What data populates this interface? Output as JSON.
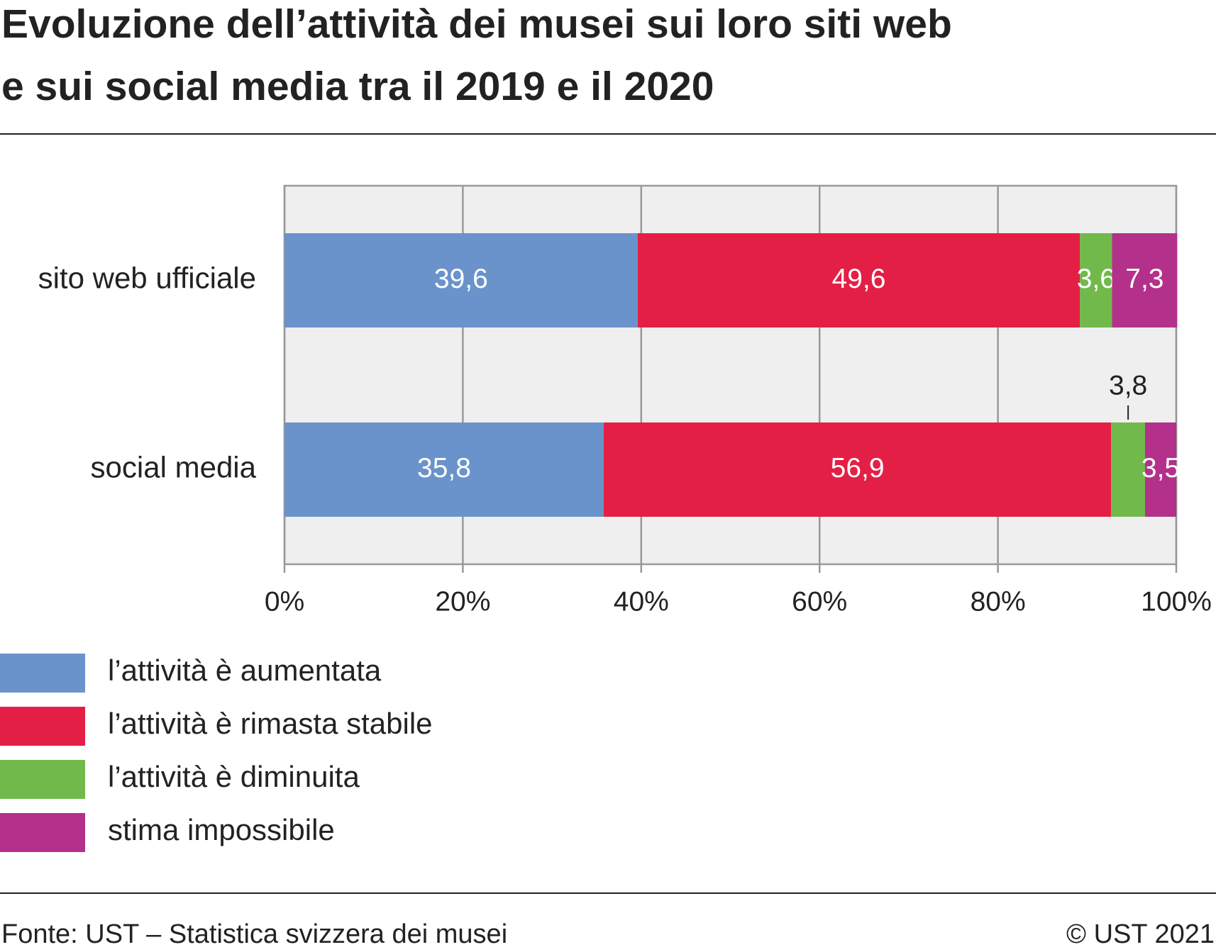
{
  "chart_data": {
    "type": "stacked_barh",
    "title": [
      "Evoluzione dell’attività dei musei sui loro siti web",
      "e sui social media tra il 2019 e il 2020"
    ],
    "categories": [
      "sito web ufficiale",
      "social media"
    ],
    "series": [
      {
        "name": "l’attività è aumentata",
        "color": "#6a93cb",
        "values": [
          39.6,
          35.8
        ],
        "value_labels": [
          "39,6",
          "35,8"
        ]
      },
      {
        "name": "l’attività è rimasta stabile",
        "color": "#e41f45",
        "values": [
          49.6,
          56.9
        ],
        "value_labels": [
          "49,6",
          "56,9"
        ]
      },
      {
        "name": "l’attività è diminuita",
        "color": "#72b94c",
        "values": [
          3.6,
          3.8
        ],
        "value_labels": [
          "3,6",
          "3,8"
        ]
      },
      {
        "name": "stima impossibile",
        "color": "#b3318a",
        "values": [
          7.3,
          3.5
        ],
        "value_labels": [
          "7,3",
          "3,5"
        ]
      }
    ],
    "xlim": [
      0,
      100
    ],
    "xticks": [
      {
        "value": 0,
        "label": "0%"
      },
      {
        "value": 20,
        "label": "20%"
      },
      {
        "value": 40,
        "label": "40%"
      },
      {
        "value": 60,
        "label": "60%"
      },
      {
        "value": 80,
        "label": "80%"
      },
      {
        "value": 100,
        "label": "100%"
      }
    ],
    "grid": true,
    "source": "Fonte: UST – Statistica svizzera dei musei",
    "copyright": "© UST 2021"
  }
}
